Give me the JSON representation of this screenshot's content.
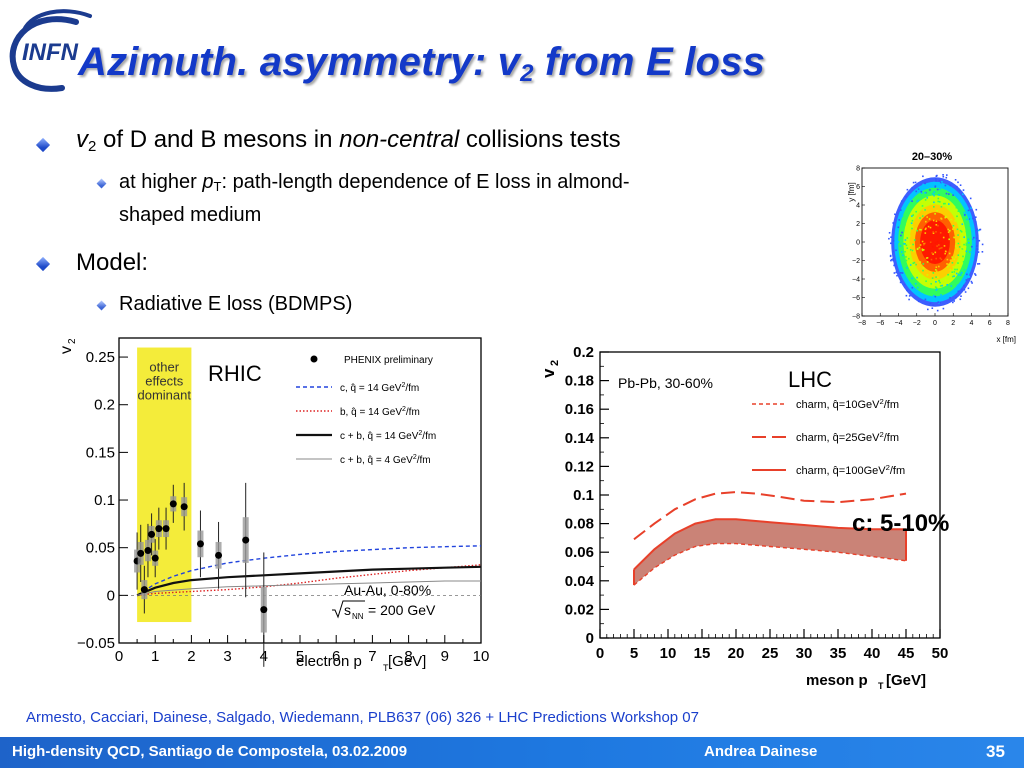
{
  "slide": {
    "title_main": "Azimuth. asymmetry: v",
    "title_sub": "2",
    "title_rest": " from E loss",
    "logo_text": "INFN",
    "bullets": {
      "b1_v": "v",
      "b1_sub": "2",
      "b1_mid": " of D and B mesons in ",
      "b1_italic": "non-central",
      "b1_end": " collisions tests",
      "b1a_start": "at higher ",
      "b1a_p": "p",
      "b1a_sub": "T",
      "b1a_end": ": path-length dependence of E loss in almond-",
      "b1a_line2": "shaped medium",
      "b2": "Model:",
      "b2a": "Radiative E loss (BDMPS)"
    },
    "reference": "Armesto, Cacciari, Dainese, Salgado, Wiedemann, PLB637 (06) 326 + LHC Predictions Workshop 07",
    "footer": {
      "left": "High-density QCD, Santiago de Compostela, 03.02.2009",
      "author": "Andrea Dainese",
      "page": "35"
    },
    "colors": {
      "title": "#1339c8",
      "footer_bg": "#1e6fd6",
      "reference": "#1a3fcc",
      "highlight": "#f4ec3a"
    }
  },
  "chart_data": [
    {
      "id": "rhic",
      "type": "scatter",
      "label": "RHIC",
      "ylabel_main": "v",
      "ylabel_sub": "2",
      "xlabel_main": "electron p",
      "xlabel_sub": "T",
      "xlabel_unit": " [GeV]",
      "xlim": [
        0,
        10
      ],
      "ylim": [
        -0.05,
        0.27
      ],
      "xticks": [
        0,
        1,
        2,
        3,
        4,
        5,
        6,
        7,
        8,
        9,
        10
      ],
      "yticks": [
        {
          "v": 0.25,
          "label": "0.25"
        },
        {
          "v": 0.2,
          "label": "0.2"
        },
        {
          "v": 0.15,
          "label": "0.15"
        },
        {
          "v": 0.1,
          "label": "0.1"
        },
        {
          "v": 0.05,
          "label": "0.05"
        },
        {
          "v": 0,
          "label": "0"
        },
        {
          "v": -0.05,
          "label": "−0.05"
        }
      ],
      "band_text": [
        "other",
        "effects",
        "dominant"
      ],
      "band_x": [
        0.5,
        2.0
      ],
      "annotation_system": "Au-Au, 0-80%",
      "annotation_energy": "= 200 GeV",
      "annotation_sqrt": "s",
      "annotation_sqrt_sub": "NN",
      "legend": [
        {
          "text_a": "PHENIX preliminary",
          "sup": "",
          "text_b": "",
          "style": "dot",
          "color": "#000000"
        },
        {
          "text_a": "c, q̂ = 14 GeV",
          "sup": "2",
          "text_b": "/fm",
          "style": "dashed",
          "color": "#2244dd"
        },
        {
          "text_a": "b, q̂ = 14 GeV",
          "sup": "2",
          "text_b": "/fm",
          "style": "dotted",
          "color": "#dd2222"
        },
        {
          "text_a": "c + b, q̂ = 14 GeV",
          "sup": "2",
          "text_b": "/fm",
          "style": "solid-thick",
          "color": "#111111"
        },
        {
          "text_a": "c + b, q̂ = 4 GeV",
          "sup": "2",
          "text_b": "/fm",
          "style": "solid-thin",
          "color": "#888888"
        }
      ],
      "points": [
        {
          "x": 0.5,
          "y": 0.036,
          "err": 0.03
        },
        {
          "x": 0.6,
          "y": 0.044,
          "err": 0.03
        },
        {
          "x": 0.7,
          "y": 0.006,
          "err": 0.025
        },
        {
          "x": 0.8,
          "y": 0.047,
          "err": 0.028
        },
        {
          "x": 0.9,
          "y": 0.064,
          "err": 0.022
        },
        {
          "x": 1.0,
          "y": 0.039,
          "err": 0.02
        },
        {
          "x": 1.1,
          "y": 0.07,
          "err": 0.022
        },
        {
          "x": 1.3,
          "y": 0.07,
          "err": 0.022
        },
        {
          "x": 1.5,
          "y": 0.096,
          "err": 0.02
        },
        {
          "x": 1.8,
          "y": 0.093,
          "err": 0.025
        },
        {
          "x": 2.25,
          "y": 0.054,
          "err": 0.035
        },
        {
          "x": 2.75,
          "y": 0.042,
          "err": 0.035
        },
        {
          "x": 3.5,
          "y": 0.058,
          "err": 0.06
        },
        {
          "x": 4.0,
          "y": -0.015,
          "err": 0.06
        }
      ],
      "series": [
        {
          "name": "c, q̂ = 14 GeV²/fm",
          "style": "dashed",
          "color": "#2244dd",
          "x": [
            0.5,
            1,
            1.5,
            2,
            3,
            4,
            5,
            6,
            7,
            8,
            9,
            10
          ],
          "y": [
            0.0,
            0.012,
            0.02,
            0.026,
            0.034,
            0.039,
            0.043,
            0.046,
            0.048,
            0.05,
            0.051,
            0.052
          ]
        },
        {
          "name": "b, q̂ = 14 GeV²/fm",
          "style": "dotted",
          "color": "#dd2222",
          "x": [
            0.5,
            1,
            2,
            3,
            4,
            5,
            6,
            7,
            8,
            9,
            10
          ],
          "y": [
            0.0,
            0.002,
            0.004,
            0.006,
            0.009,
            0.013,
            0.018,
            0.022,
            0.026,
            0.029,
            0.032
          ]
        },
        {
          "name": "c + b, q̂ = 14 GeV²/fm",
          "style": "solid-thick",
          "color": "#111111",
          "x": [
            0.5,
            1,
            1.5,
            2,
            3,
            4,
            5,
            6,
            7,
            8,
            9,
            10
          ],
          "y": [
            0.0,
            0.008,
            0.013,
            0.016,
            0.019,
            0.021,
            0.023,
            0.025,
            0.027,
            0.028,
            0.029,
            0.03
          ]
        },
        {
          "name": "c + b, q̂ = 4 GeV²/fm",
          "style": "solid-thin",
          "color": "#888888",
          "x": [
            0.5,
            1,
            2,
            3,
            4,
            5,
            6,
            7,
            8,
            9,
            10
          ],
          "y": [
            0.0,
            0.004,
            0.007,
            0.009,
            0.01,
            0.011,
            0.012,
            0.013,
            0.014,
            0.015,
            0.015
          ]
        }
      ]
    },
    {
      "id": "lhc",
      "type": "area",
      "label": "LHC",
      "system": "Pb-Pb, 30-60%",
      "ylabel_main": "v",
      "ylabel_sub": "2",
      "xlabel_main": "meson p",
      "xlabel_sub": "T",
      "xlabel_unit": " [GeV]",
      "xlim": [
        0,
        50
      ],
      "ylim": [
        0,
        0.2
      ],
      "xticks": [
        0,
        5,
        10,
        15,
        20,
        25,
        30,
        35,
        40,
        45,
        50
      ],
      "yticks": [
        {
          "v": 0,
          "label": "0"
        },
        {
          "v": 0.02,
          "label": "0.02"
        },
        {
          "v": 0.04,
          "label": "0.04"
        },
        {
          "v": 0.06,
          "label": "0.06"
        },
        {
          "v": 0.08,
          "label": "0.08"
        },
        {
          "v": 0.1,
          "label": "0.1"
        },
        {
          "v": 0.12,
          "label": "0.12"
        },
        {
          "v": 0.14,
          "label": "0.14"
        },
        {
          "v": 0.16,
          "label": "0.16"
        },
        {
          "v": 0.18,
          "label": "0.18"
        },
        {
          "v": 0.2,
          "label": "0.2"
        }
      ],
      "annotation": "c: 5-10%",
      "legend": [
        {
          "text_a": "charm, q̂=10GeV",
          "sup": "2",
          "text_b": "/fm",
          "style": "dashed-short",
          "color": "#e8402a"
        },
        {
          "text_a": "charm, q̂=25GeV",
          "sup": "2",
          "text_b": "/fm",
          "style": "dashed-long",
          "color": "#e8402a"
        },
        {
          "text_a": "charm, q̂=100GeV",
          "sup": "2",
          "text_b": "/fm",
          "style": "solid",
          "color": "#e8402a"
        }
      ],
      "series": [
        {
          "name": "charm, q̂=10GeV²/fm",
          "style": "dashed-short",
          "color": "#e8402a",
          "x": [
            5,
            8,
            11,
            14,
            17,
            20,
            25,
            30,
            35,
            40,
            45
          ],
          "y": [
            0.037,
            0.049,
            0.058,
            0.064,
            0.066,
            0.066,
            0.064,
            0.062,
            0.06,
            0.057,
            0.054
          ]
        },
        {
          "name": "charm, q̂=25GeV²/fm",
          "style": "dashed-long",
          "color": "#e8402a",
          "x": [
            5,
            8,
            11,
            14,
            17,
            20,
            23,
            26,
            30,
            35,
            40,
            45
          ],
          "y": [
            0.069,
            0.08,
            0.09,
            0.097,
            0.101,
            0.102,
            0.101,
            0.099,
            0.096,
            0.095,
            0.097,
            0.101
          ]
        },
        {
          "name": "charm, q̂=100GeV²/fm",
          "style": "solid",
          "color": "#e8402a",
          "x": [
            5,
            8,
            11,
            14,
            17,
            20,
            25,
            30,
            35,
            40,
            45
          ],
          "y": [
            0.048,
            0.062,
            0.073,
            0.08,
            0.083,
            0.083,
            0.081,
            0.079,
            0.077,
            0.076,
            0.076
          ]
        }
      ],
      "band": {
        "between": [
          0,
          2
        ],
        "color": "#b85a4a",
        "opacity": 0.75
      }
    },
    {
      "id": "density-map",
      "type": "heatmap",
      "title": "20–30%",
      "xlabel": "x [fm]",
      "ylabel": "y [fm]",
      "xlim": [
        -8,
        8
      ],
      "ylim": [
        -8,
        8
      ],
      "ticks": [
        -8,
        -6,
        -4,
        -2,
        0,
        2,
        4,
        6,
        8
      ],
      "tick_labels": [
        "−8",
        "−6",
        "−4",
        "−2",
        "0",
        "2",
        "4",
        "6",
        "8"
      ],
      "ellipse_axes_fm": [
        4.8,
        7.0
      ],
      "color_scale": [
        "#ff1500",
        "#ff5a00",
        "#ffcc00",
        "#ccff00",
        "#33ff55",
        "#00c8ff",
        "#3355ff"
      ]
    }
  ]
}
